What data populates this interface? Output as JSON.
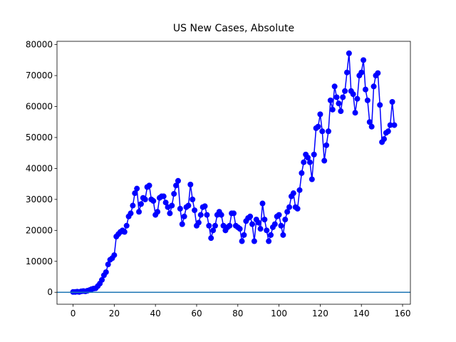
{
  "chart_data": {
    "type": "line",
    "title": "US New Cases, Absolute",
    "x": [
      0,
      1,
      2,
      3,
      4,
      5,
      6,
      7,
      8,
      9,
      10,
      11,
      12,
      13,
      14,
      15,
      16,
      17,
      18,
      19,
      20,
      21,
      22,
      23,
      24,
      25,
      26,
      27,
      28,
      29,
      30,
      31,
      32,
      33,
      34,
      35,
      36,
      37,
      38,
      39,
      40,
      41,
      42,
      43,
      44,
      45,
      46,
      47,
      48,
      49,
      50,
      51,
      52,
      53,
      54,
      55,
      56,
      57,
      58,
      59,
      60,
      61,
      62,
      63,
      64,
      65,
      66,
      67,
      68,
      69,
      70,
      71,
      72,
      73,
      74,
      75,
      76,
      77,
      78,
      79,
      80,
      81,
      82,
      83,
      84,
      85,
      86,
      87,
      88,
      89,
      90,
      91,
      92,
      93,
      94,
      95,
      96,
      97,
      98,
      99,
      100,
      101,
      102,
      103,
      104,
      105,
      106,
      107,
      108,
      109,
      110,
      111,
      112,
      113,
      114,
      115,
      116,
      117,
      118,
      119,
      120,
      121,
      122,
      123,
      124,
      125,
      126,
      127,
      128,
      129,
      130,
      131,
      132,
      133,
      134,
      135,
      136,
      137,
      138,
      139,
      140,
      141,
      142,
      143,
      144,
      145,
      146,
      147,
      148,
      149,
      150,
      151,
      152,
      153,
      154,
      155,
      156
    ],
    "values": [
      100,
      100,
      200,
      100,
      300,
      400,
      300,
      500,
      700,
      1000,
      1200,
      1300,
      2000,
      2800,
      4000,
      5500,
      6500,
      9000,
      10500,
      11000,
      12000,
      18000,
      18800,
      19500,
      20000,
      19500,
      21500,
      24500,
      25500,
      28000,
      32000,
      33500,
      26000,
      28500,
      30500,
      30000,
      34000,
      34500,
      30000,
      29500,
      25000,
      26000,
      30500,
      31000,
      31000,
      29000,
      27500,
      25500,
      28000,
      31800,
      34500,
      36000,
      27000,
      22000,
      24500,
      27500,
      28000,
      34800,
      30000,
      26500,
      21500,
      22500,
      25000,
      27500,
      27800,
      25000,
      21500,
      17500,
      20000,
      21500,
      25000,
      26000,
      25000,
      21500,
      20000,
      21000,
      21500,
      25500,
      25500,
      21500,
      21000,
      20500,
      16500,
      18500,
      23000,
      24000,
      24500,
      22000,
      16500,
      23500,
      22500,
      20500,
      28700,
      23500,
      20000,
      16500,
      18500,
      21000,
      22000,
      24500,
      25000,
      21500,
      18500,
      23500,
      26000,
      27500,
      31000,
      32000,
      27500,
      27000,
      33000,
      38500,
      42000,
      44500,
      43500,
      42000,
      36500,
      44500,
      53000,
      53500,
      57500,
      52000,
      42500,
      47500,
      52000,
      62000,
      59000,
      66500,
      63000,
      61000,
      58500,
      63000,
      65000,
      71000,
      77200,
      65000,
      64000,
      58000,
      62500,
      70000,
      71000,
      75000,
      65500,
      62000,
      55000,
      53500,
      66500,
      70000,
      70800,
      60500,
      48500,
      49500,
      51500,
      52000,
      54000,
      61500,
      54000
    ],
    "color": "#0000ff",
    "marker": "circle",
    "hlines": [
      {
        "value": 0,
        "color": "#1f77b4"
      }
    ],
    "xlim": [
      -7.8,
      163.8
    ],
    "ylim": [
      -3860,
      81060
    ],
    "xticks": [
      0,
      20,
      40,
      60,
      80,
      100,
      120,
      140,
      160
    ],
    "yticks": [
      0,
      10000,
      20000,
      30000,
      40000,
      50000,
      60000,
      70000,
      80000
    ],
    "grid": false
  }
}
